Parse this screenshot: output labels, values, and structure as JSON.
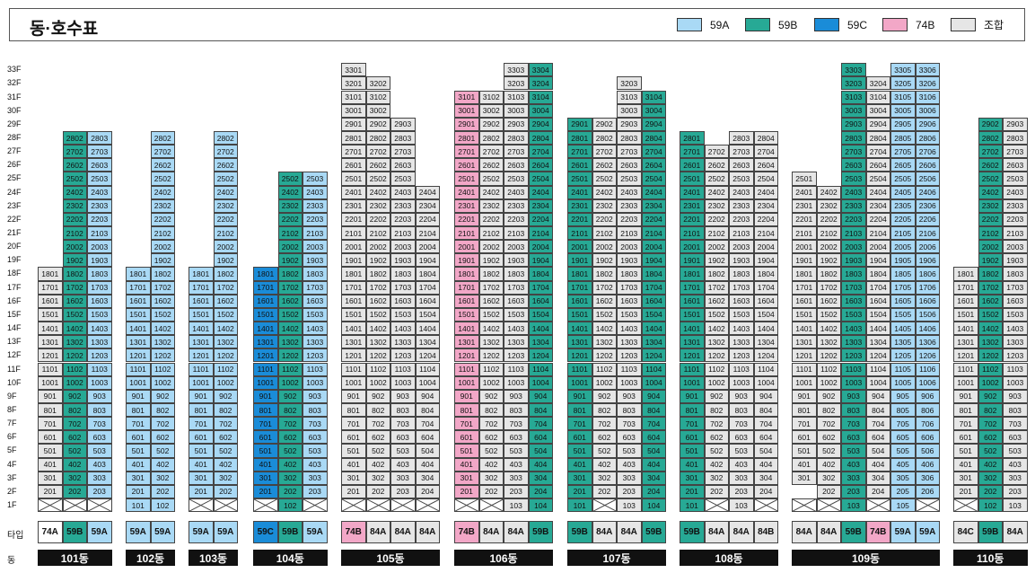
{
  "header": {
    "title": "동·호수표"
  },
  "legend": [
    {
      "label": "59A",
      "color": "#a9d9f5"
    },
    {
      "label": "59B",
      "color": "#27a995"
    },
    {
      "label": "59C",
      "color": "#1a8cd8"
    },
    {
      "label": "74B",
      "color": "#f2a7c7"
    },
    {
      "label": "조합",
      "color": "#e6e6e6"
    }
  ],
  "floors": [
    "1F",
    "2F",
    "3F",
    "4F",
    "5F",
    "6F",
    "7F",
    "8F",
    "9F",
    "10F",
    "11F",
    "12F",
    "13F",
    "14F",
    "15F",
    "16F",
    "17F",
    "18F",
    "19F",
    "20F",
    "21F",
    "22F",
    "23F",
    "24F",
    "25F",
    "26F",
    "27F",
    "28F",
    "29F",
    "30F",
    "31F",
    "32F",
    "33F"
  ],
  "labels": {
    "type_row": "타입",
    "dong_row": "동"
  },
  "type_colors": {
    "59A": "#a9d9f5",
    "59B": "#27a995",
    "59C": "#1a8cd8",
    "74B": "#f2a7c7",
    "84A": "#e6e6e6",
    "84B": "#e6e6e6",
    "84C": "#e6e6e6",
    "J": "#e6e6e6"
  },
  "buildings": [
    {
      "name": "101동",
      "types": [
        "74A",
        "59B",
        "59A"
      ],
      "colors": [
        [
          "J",
          1,
          18
        ]
      ],
      "typeColors": [
        "J",
        "59B",
        "59A"
      ],
      "cols": [
        {
          "unit": "01",
          "range": [
            2,
            18
          ],
          "x1": true
        },
        {
          "unit": "02",
          "range": [
            2,
            28
          ],
          "x1": true,
          "c": "59B"
        },
        {
          "unit": "03",
          "range": [
            2,
            28
          ],
          "x1": true,
          "c": "59A"
        }
      ]
    },
    {
      "name": "102동",
      "types": [
        "59A",
        "59A"
      ],
      "cols": [
        {
          "unit": "01",
          "range": [
            1,
            18
          ],
          "c": "59A",
          "x1": true
        },
        {
          "unit": "02",
          "range": [
            1,
            28
          ],
          "c": "59A",
          "x1": true
        }
      ]
    },
    {
      "name": "103동",
      "types": [
        "59A",
        "59A"
      ],
      "cols": [
        {
          "unit": "01",
          "range": [
            2,
            18
          ],
          "c": "59A",
          "x1": true
        },
        {
          "unit": "02",
          "range": [
            2,
            28
          ],
          "c": "59A",
          "x1": true
        }
      ]
    },
    {
      "name": "104동",
      "types": [
        "59C",
        "59B",
        "59A"
      ],
      "cols": [
        {
          "unit": "01",
          "range": [
            2,
            18
          ],
          "c": "59C",
          "x1": true
        },
        {
          "unit": "02",
          "range": [
            1,
            25
          ],
          "c": "59B"
        },
        {
          "unit": "03",
          "range": [
            2,
            25
          ],
          "c": "59A",
          "x1": true
        }
      ]
    },
    {
      "name": "105동",
      "types": [
        "74B",
        "84A",
        "84A",
        "84A"
      ],
      "cols": [
        {
          "unit": "01",
          "range": [
            2,
            33
          ],
          "x1": true
        },
        {
          "unit": "02",
          "range": [
            2,
            32
          ],
          "x1": true
        },
        {
          "unit": "03",
          "range": [
            2,
            29
          ],
          "x1": true
        },
        {
          "unit": "04",
          "range": [
            2,
            24
          ],
          "x1": true
        }
      ]
    },
    {
      "name": "106동",
      "types": [
        "74B",
        "84A",
        "84A",
        "59B"
      ],
      "cols": [
        {
          "unit": "01",
          "range": [
            2,
            31
          ],
          "c": "74B",
          "x1": true
        },
        {
          "unit": "02",
          "range": [
            2,
            31
          ],
          "x1": true
        },
        {
          "unit": "03",
          "range": [
            1,
            33
          ]
        },
        {
          "unit": "04",
          "range": [
            1,
            33
          ],
          "c": "59B"
        }
      ]
    },
    {
      "name": "107동",
      "types": [
        "59B",
        "84A",
        "84A",
        "59B"
      ],
      "cols": [
        {
          "unit": "01",
          "range": [
            1,
            29
          ],
          "c": "59B"
        },
        {
          "unit": "02",
          "range": [
            2,
            29
          ],
          "x1": true
        },
        {
          "unit": "03",
          "range": [
            1,
            32
          ]
        },
        {
          "unit": "04",
          "range": [
            1,
            31
          ],
          "c": "59B"
        }
      ]
    },
    {
      "name": "108동",
      "types": [
        "59B",
        "84A",
        "84A",
        "84B"
      ],
      "cols": [
        {
          "unit": "01",
          "range": [
            1,
            28
          ],
          "c": "59B"
        },
        {
          "unit": "02",
          "range": [
            2,
            27
          ],
          "x1": true
        },
        {
          "unit": "03",
          "range": [
            1,
            28
          ]
        },
        {
          "unit": "04",
          "range": [
            2,
            28
          ],
          "x1": true
        }
      ]
    },
    {
      "name": "109동",
      "types": [
        "84A",
        "84A",
        "59B",
        "74B",
        "59A",
        "59A"
      ],
      "cols": [
        {
          "unit": "01",
          "range": [
            3,
            25
          ],
          "x1": true
        },
        {
          "unit": "02",
          "range": [
            2,
            24
          ],
          "x1": true
        },
        {
          "unit": "03",
          "range": [
            1,
            33
          ],
          "c": "59B"
        },
        {
          "unit": "04",
          "range": [
            2,
            32
          ],
          "x1": true
        },
        {
          "unit": "05",
          "range": [
            1,
            33
          ],
          "c": "59A"
        },
        {
          "unit": "06",
          "range": [
            2,
            33
          ],
          "x1": true,
          "c": "59A"
        }
      ]
    },
    {
      "name": "110동",
      "types": [
        "84C",
        "59B",
        "84A"
      ],
      "cols": [
        {
          "unit": "01",
          "range": [
            2,
            18
          ],
          "x1": true
        },
        {
          "unit": "02",
          "range": [
            1,
            29
          ],
          "c": "59B"
        },
        {
          "unit": "03",
          "range": [
            1,
            29
          ]
        }
      ]
    }
  ]
}
